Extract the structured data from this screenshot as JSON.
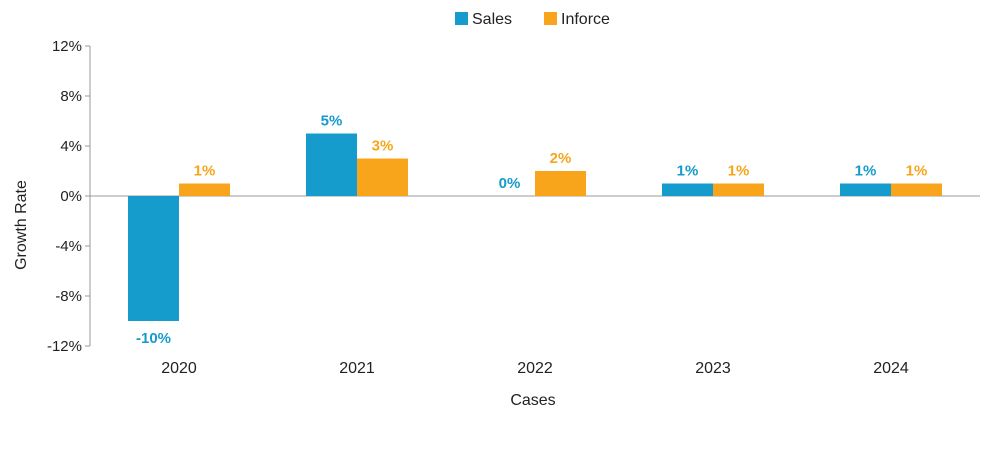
{
  "chart_data": {
    "type": "bar",
    "categories": [
      "2020",
      "2021",
      "2022",
      "2023",
      "2024"
    ],
    "series": [
      {
        "name": "Sales",
        "values": [
          -10,
          5,
          0,
          1,
          1
        ],
        "labels": [
          "-10%",
          "5%",
          "0%",
          "1%",
          "1%"
        ],
        "color": "#159BCC"
      },
      {
        "name": "Inforce",
        "values": [
          1,
          3,
          2,
          1,
          1
        ],
        "labels": [
          "1%",
          "3%",
          "2%",
          "1%",
          "1%"
        ],
        "color": "#F8A51B"
      }
    ],
    "xlabel": "Cases",
    "ylabel": "Growth Rate",
    "ylim": [
      -12,
      12
    ],
    "yticks": [
      12,
      8,
      4,
      0,
      -4,
      -8,
      -12
    ],
    "ytick_labels": [
      "12%",
      "8%",
      "4%",
      "0%",
      "-4%",
      "-8%",
      "-12%"
    ],
    "legend_position": "top-center",
    "grid": false
  }
}
